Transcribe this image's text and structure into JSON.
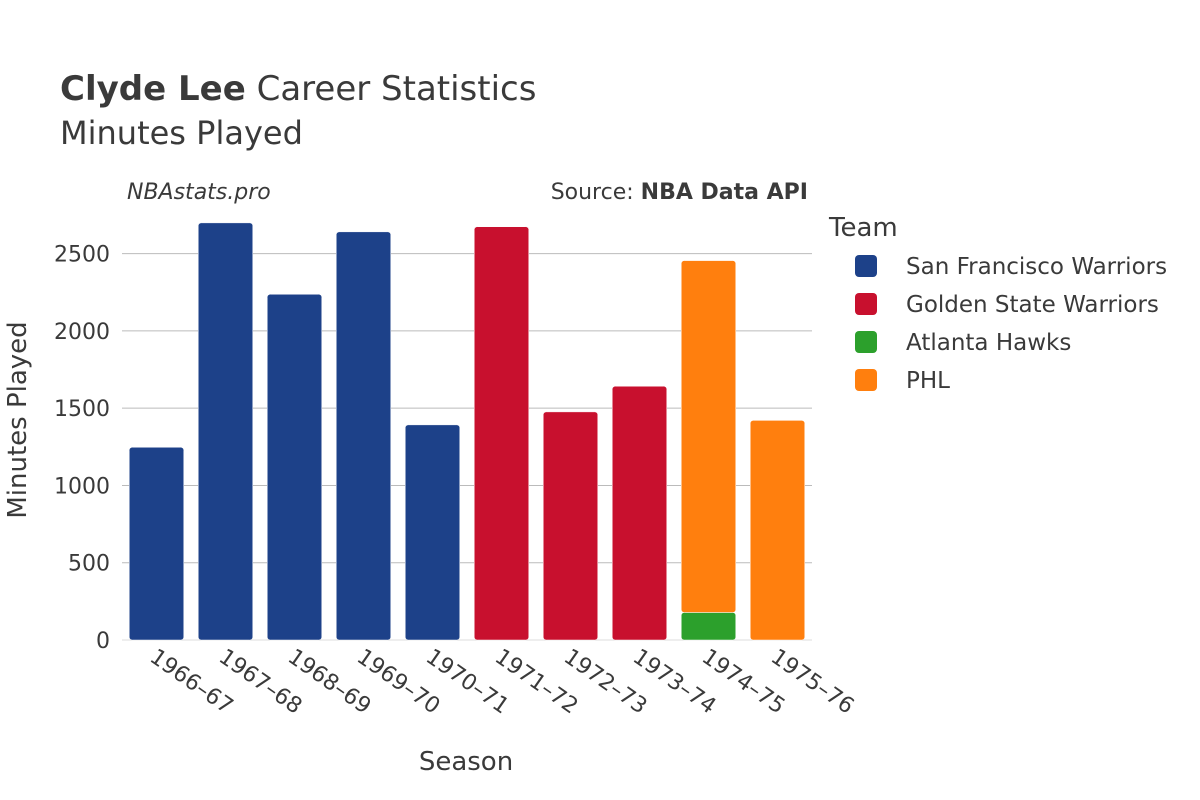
{
  "header": {
    "title_bold": "Clyde Lee",
    "title_rest": " Career Statistics",
    "subtitle": "Minutes Played",
    "watermark": "NBAstats.pro",
    "source_prefix": "Source: ",
    "source_bold": "NBA Data API"
  },
  "legend": {
    "title": "Team"
  },
  "colors": {
    "San Francisco Warriors": "#1d4189",
    "Golden State Warriors": "#c8102e",
    "Atlanta Hawks": "#2ca02c",
    "PHL": "#ff7f0e",
    "grid": "#bbbbbb",
    "text": "#3a3a3a"
  },
  "chart_data": {
    "type": "bar",
    "stacked": true,
    "xlabel": "Season",
    "ylabel": "Minutes Played",
    "ylim": [
      0,
      2750
    ],
    "yticks": [
      0,
      500,
      1000,
      1500,
      2000,
      2500
    ],
    "grid": true,
    "legend_position": "right",
    "categories": [
      "1966–67",
      "1967–68",
      "1968–69",
      "1969–70",
      "1970–71",
      "1971–72",
      "1972–73",
      "1973–74",
      "1974–75",
      "1975–76"
    ],
    "series": [
      {
        "name": "San Francisco Warriors",
        "values": [
          1247,
          2699,
          2237,
          2641,
          1392,
          0,
          0,
          0,
          0,
          0
        ]
      },
      {
        "name": "Golden State Warriors",
        "values": [
          0,
          0,
          0,
          0,
          0,
          2674,
          1476,
          1642,
          0,
          0
        ]
      },
      {
        "name": "Atlanta Hawks",
        "values": [
          0,
          0,
          0,
          0,
          0,
          0,
          0,
          0,
          178,
          0
        ]
      },
      {
        "name": "PHL",
        "values": [
          0,
          0,
          0,
          0,
          0,
          0,
          0,
          0,
          2277,
          1421
        ]
      }
    ]
  }
}
